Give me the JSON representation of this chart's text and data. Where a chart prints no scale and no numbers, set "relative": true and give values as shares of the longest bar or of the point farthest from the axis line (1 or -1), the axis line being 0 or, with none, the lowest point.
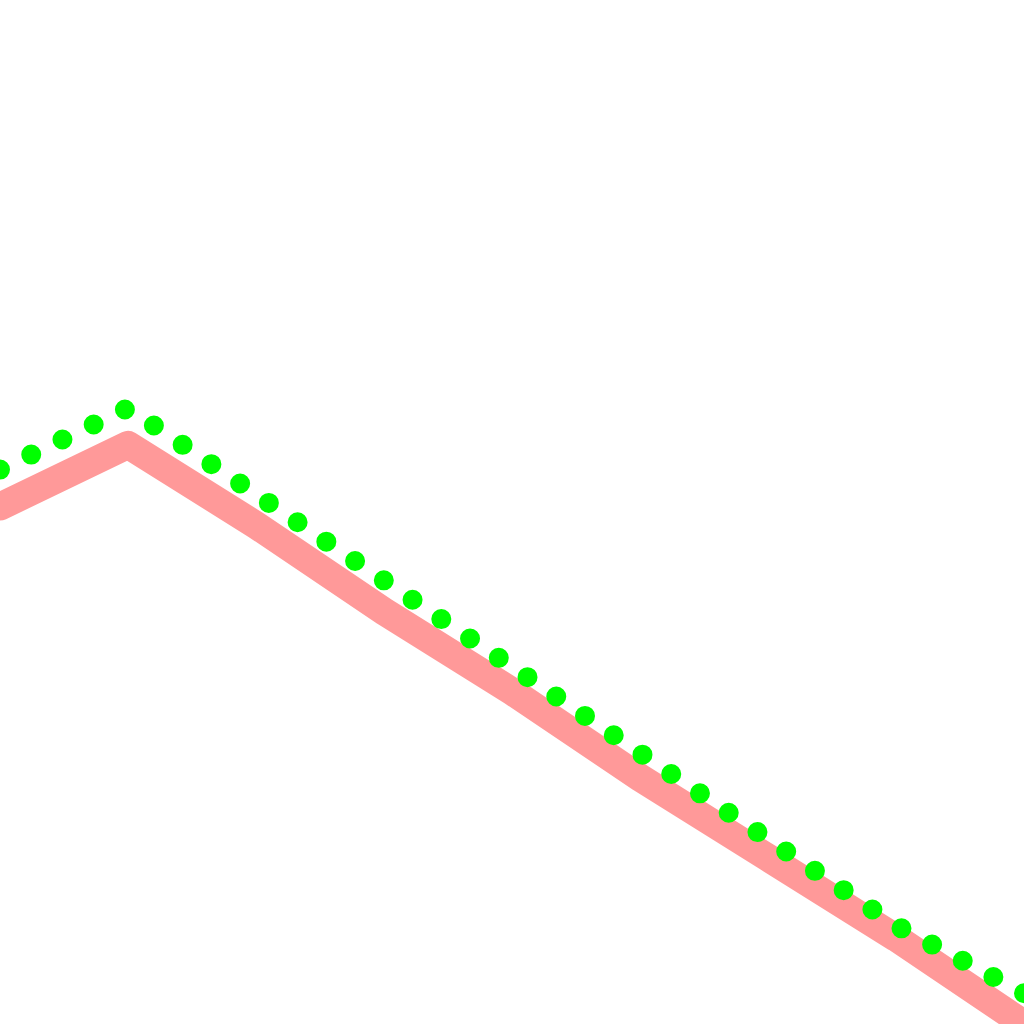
{
  "chart_data": {
    "type": "line",
    "relative": true,
    "categories": [
      null,
      null,
      null,
      null,
      null,
      null,
      null,
      null,
      null
    ],
    "series": [
      {
        "color": "#ff9999",
        "line_style": "solid",
        "values": [
          0.84,
          0.94,
          0.81,
          0.67,
          0.54,
          0.4,
          0.27,
          0.14,
          0
        ]
      },
      {
        "color": "#00ff00",
        "line_style": "dotted",
        "values": [
          0.9,
          1,
          0.86,
          0.72,
          0.58,
          0.44,
          0.3,
          0.16,
          0.05
        ]
      }
    ],
    "marker": "none",
    "grid": false
  }
}
